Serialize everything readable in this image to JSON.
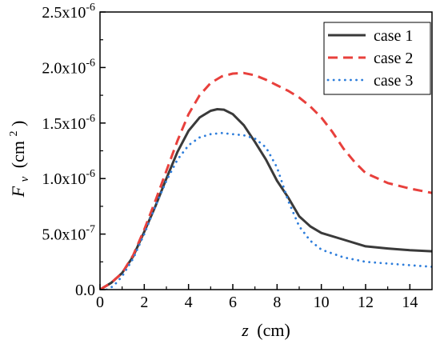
{
  "chart_data": {
    "type": "line",
    "title": "",
    "xlabel": {
      "symbol": "z",
      "unit": "(cm)"
    },
    "ylabel": {
      "symbol": "F",
      "subscript": "v",
      "unit_prefix": "(cm",
      "unit_sup": "2",
      "unit_suffix": ")"
    },
    "xlim": [
      0,
      15
    ],
    "ylim": [
      0,
      2.5e-06
    ],
    "x_ticks": [
      0,
      2,
      4,
      6,
      8,
      10,
      12,
      14
    ],
    "x_tick_labels": [
      "0",
      "2",
      "4",
      "6",
      "8",
      "10",
      "12",
      "14"
    ],
    "y_ticks": [
      0,
      5e-07,
      1e-06,
      1.5e-06,
      2e-06,
      2.5e-06
    ],
    "y_tick_labels": [
      {
        "base": "0.0",
        "exp": ""
      },
      {
        "base": "5.0x10",
        "exp": "-7"
      },
      {
        "base": "1.0x10",
        "exp": "-6"
      },
      {
        "base": "1.5x10",
        "exp": "-6"
      },
      {
        "base": "2.0x10",
        "exp": "-6"
      },
      {
        "base": "2.5x10",
        "exp": "-6"
      }
    ],
    "grid": false,
    "legend_position": "top-right",
    "series": [
      {
        "name": "case 1",
        "color": "#3a3a3a",
        "style": "solid",
        "x": [
          0,
          0.5,
          1,
          1.5,
          2,
          2.5,
          3,
          3.5,
          4,
          4.5,
          5,
          5.3,
          5.6,
          6,
          6.5,
          7,
          7.5,
          8,
          8.5,
          9,
          9.5,
          10,
          11,
          12,
          13,
          14,
          15
        ],
        "y": [
          0,
          6e-08,
          1.5e-07,
          3e-07,
          5.2e-07,
          7.5e-07,
          1e-06,
          1.24e-06,
          1.43e-06,
          1.55e-06,
          1.61e-06,
          1.625e-06,
          1.62e-06,
          1.58e-06,
          1.48e-06,
          1.33e-06,
          1.17e-06,
          9.8e-07,
          8.3e-07,
          6.6e-07,
          5.7e-07,
          5.1e-07,
          4.5e-07,
          3.9e-07,
          3.7e-07,
          3.55e-07,
          3.45e-07
        ]
      },
      {
        "name": "case 2",
        "color": "#e8403c",
        "style": "dashed",
        "x": [
          0,
          0.5,
          1,
          1.5,
          2,
          2.5,
          3,
          3.5,
          4,
          4.5,
          5,
          5.5,
          6,
          6.5,
          7,
          7.5,
          8,
          8.5,
          9,
          9.5,
          10,
          10.5,
          11,
          11.5,
          12,
          13,
          14,
          15
        ],
        "y": [
          0,
          6e-08,
          1.5e-07,
          3.1e-07,
          5.4e-07,
          8e-07,
          1.07e-06,
          1.34e-06,
          1.58e-06,
          1.75e-06,
          1.86e-06,
          1.92e-06,
          1.945e-06,
          1.95e-06,
          1.93e-06,
          1.89e-06,
          1.84e-06,
          1.79e-06,
          1.73e-06,
          1.65e-06,
          1.55e-06,
          1.42e-06,
          1.27e-06,
          1.15e-06,
          1.05e-06,
          9.6e-07,
          9.1e-07,
          8.7e-07
        ]
      },
      {
        "name": "case 3",
        "color": "#2d7ddb",
        "style": "dotted",
        "x": [
          0.3,
          0.6,
          1,
          1.5,
          2,
          2.5,
          3,
          3.5,
          4,
          4.5,
          5,
          5.5,
          6,
          6.5,
          7,
          7.5,
          8,
          8.5,
          9,
          9.5,
          10,
          11,
          12,
          13,
          14,
          15
        ],
        "y": [
          0,
          3e-08,
          1.2e-07,
          2.8e-07,
          5e-07,
          7.5e-07,
          9.8e-07,
          1.17e-06,
          1.3e-06,
          1.37e-06,
          1.4e-06,
          1.41e-06,
          1.4e-06,
          1.39e-06,
          1.36e-06,
          1.28e-06,
          1.1e-06,
          8e-07,
          5.7e-07,
          4.4e-07,
          3.6e-07,
          2.9e-07,
          2.5e-07,
          2.35e-07,
          2.2e-07,
          2.05e-07
        ]
      }
    ]
  }
}
